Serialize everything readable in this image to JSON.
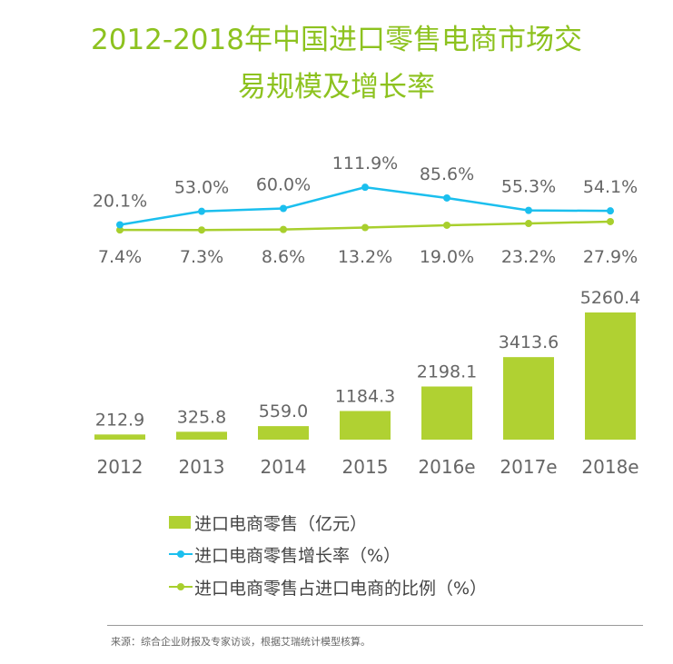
{
  "title_line1": "2012-2018年中国进口零售电商市场交",
  "title_line2": "易规模及增长率",
  "colors": {
    "bar": "#b0d132",
    "growth_line": "#1bbfee",
    "share_line": "#a8cf2d",
    "title": "#8dc21f"
  },
  "chart_data": {
    "type": "bar+line",
    "categories": [
      "2012",
      "2013",
      "2014",
      "2015",
      "2016e",
      "2017e",
      "2018e"
    ],
    "series": [
      {
        "name": "进口电商零售（亿元）",
        "type": "bar",
        "values": [
          212.9,
          325.8,
          559.0,
          1184.3,
          2198.1,
          3413.6,
          5260.4
        ],
        "labels": [
          "212.9",
          "325.8",
          "559.0",
          "1184.3",
          "2198.1",
          "3413.6",
          "5260.4"
        ]
      },
      {
        "name": "进口电商零售增长率（%）",
        "type": "line",
        "values": [
          20.1,
          53.0,
          60.0,
          111.9,
          85.6,
          55.3,
          54.1
        ],
        "labels": [
          "20.1%",
          "53.0%",
          "60.0%",
          "111.9%",
          "85.6%",
          "55.3%",
          "54.1%"
        ]
      },
      {
        "name": "进口电商零售占进口电商的比例（%）",
        "type": "line",
        "values": [
          7.4,
          7.3,
          8.6,
          13.2,
          19.0,
          23.2,
          27.9
        ],
        "labels": [
          "7.4%",
          "7.3%",
          "8.6%",
          "13.2%",
          "19.0%",
          "23.2%",
          "27.9%"
        ]
      }
    ],
    "legend_position": "bottom-left",
    "grid": false
  },
  "source": "来源：综合企业财报及专家访谈，根据艾瑞统计模型核算。"
}
